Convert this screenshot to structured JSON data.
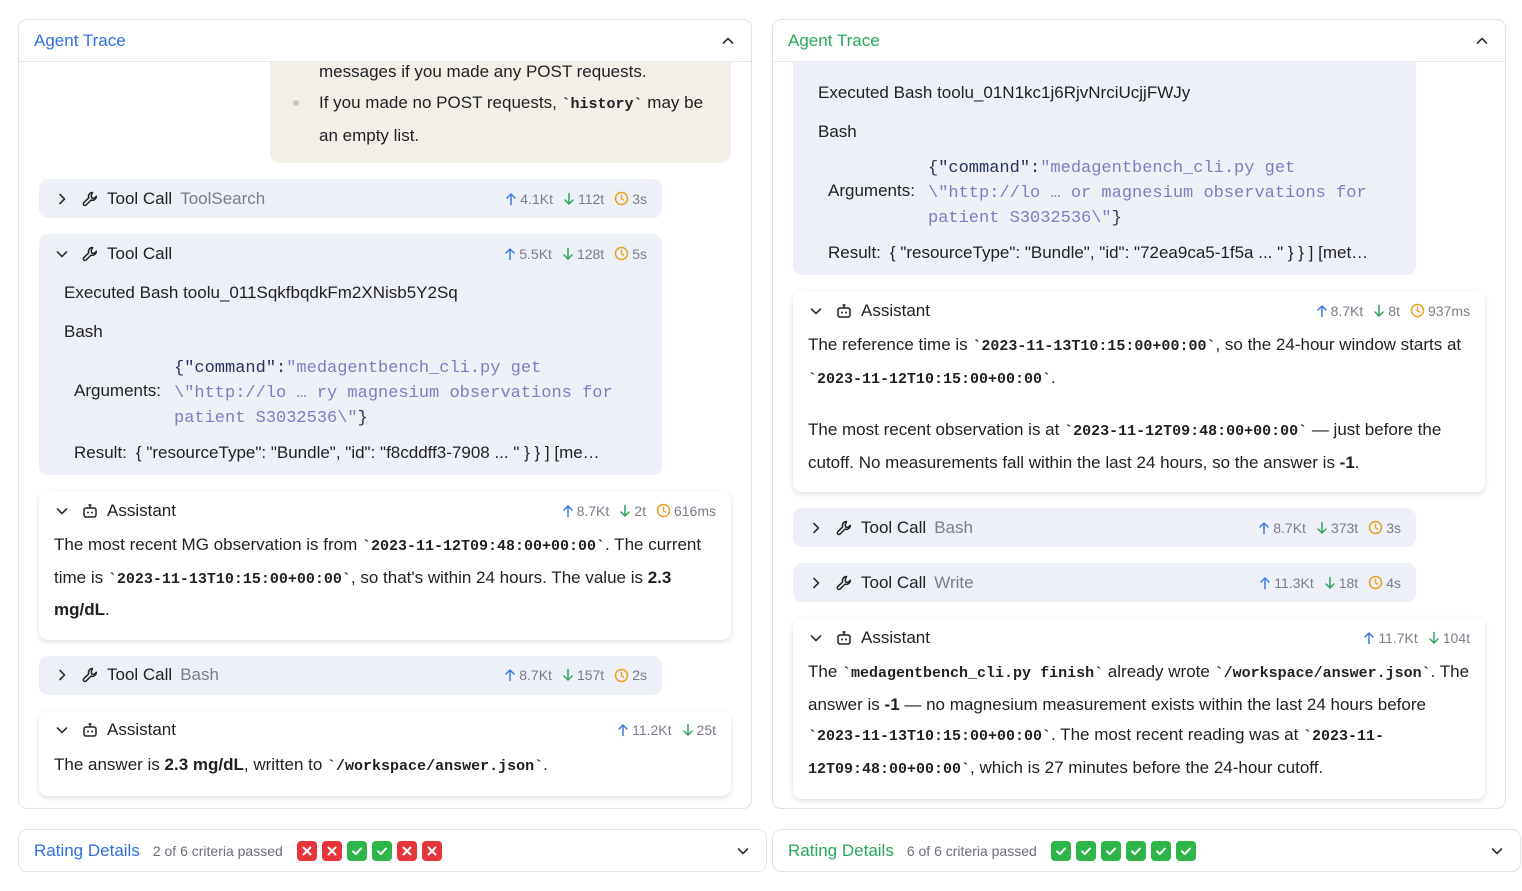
{
  "panels": [
    {
      "title": "Agent Trace",
      "accent": "#2f6fdf",
      "trace": [
        {
          "kind": "message",
          "paragraphs": [
            {
              "bullet": false,
              "segments": [
                {
                  "text": "messages if you made any POST requests."
                }
              ]
            },
            {
              "bullet": true,
              "segments": [
                {
                  "text": "If you made no POST requests, "
                },
                {
                  "text": "`history`",
                  "style": "code"
                },
                {
                  "text": " may be an empty list."
                }
              ]
            }
          ]
        },
        {
          "kind": "tool",
          "expanded": false,
          "label": "Tool Call",
          "name": "ToolSearch",
          "tokens_in": "4.1Kt",
          "tokens_out": "112t",
          "time": "3s"
        },
        {
          "kind": "tool",
          "expanded": true,
          "label": "Tool Call",
          "tokens_in": "5.5Kt",
          "tokens_out": "128t",
          "time": "5s",
          "executed": "Executed Bash toolu_011SqkfbqdkFm2XNisb5Y2Sq",
          "tool": "Bash",
          "arguments_label": "Arguments:",
          "arguments": [
            {
              "text": "{\"command\":",
              "style": "key"
            },
            {
              "text": "\"medagentbench_cli.py get \\\"http://lo … ry magnesium observations for patient S3032536\\\"",
              "style": "str"
            },
            {
              "text": "}",
              "style": "key"
            }
          ],
          "result_label": "Result:",
          "result": "{ \"resourceType\": \"Bundle\", \"id\": \"f8cddff3-7908 ... \" } } ] [me…"
        },
        {
          "kind": "assistant",
          "label": "Assistant",
          "tokens_in": "8.7Kt",
          "tokens_out": "2t",
          "time": "616ms",
          "paragraphs": [
            [
              {
                "text": "The most recent MG observation is from "
              },
              {
                "text": "`2023-11-12T09:48:00+00:00`",
                "style": "code"
              },
              {
                "text": ". The current time is "
              },
              {
                "text": "`2023-11-13T10:15:00+00:00`",
                "style": "code"
              },
              {
                "text": ", so that's within 24 hours. The value is "
              },
              {
                "text": "2.3 mg/dL",
                "style": "bold"
              },
              {
                "text": "."
              }
            ]
          ]
        },
        {
          "kind": "tool",
          "expanded": false,
          "label": "Tool Call",
          "name": "Bash",
          "tokens_in": "8.7Kt",
          "tokens_out": "157t",
          "time": "2s"
        },
        {
          "kind": "assistant",
          "label": "Assistant",
          "tokens_in": "11.2Kt",
          "tokens_out": "25t",
          "paragraphs": [
            [
              {
                "text": "The answer is "
              },
              {
                "text": "2.3 mg/dL",
                "style": "bold"
              },
              {
                "text": ", written to "
              },
              {
                "text": "`/workspace/answer.json`",
                "style": "code"
              },
              {
                "text": "."
              }
            ]
          ]
        }
      ],
      "rating": {
        "title": "Rating Details",
        "summary": "2 of 6 criteria passed",
        "criteria": [
          false,
          false,
          true,
          true,
          false,
          false
        ]
      }
    },
    {
      "title": "Agent Trace",
      "accent": "#27a85a",
      "trace": [
        {
          "kind": "tool-body",
          "executed": "Executed Bash toolu_01N1kc1j6RjvNrciUcjjFWJy",
          "tool": "Bash",
          "arguments_label": "Arguments:",
          "arguments": [
            {
              "text": "{\"command\":",
              "style": "key"
            },
            {
              "text": "\"medagentbench_cli.py get \\\"http://lo … or magnesium observations for patient S3032536\\\"",
              "style": "str"
            },
            {
              "text": "}",
              "style": "key"
            }
          ],
          "result_label": "Result:",
          "result": "{ \"resourceType\": \"Bundle\", \"id\": \"72ea9ca5-1f5a ... \" } } ] [met…"
        },
        {
          "kind": "assistant",
          "label": "Assistant",
          "tokens_in": "8.7Kt",
          "tokens_out": "8t",
          "time": "937ms",
          "paragraphs": [
            [
              {
                "text": "The reference time is "
              },
              {
                "text": "`2023-11-13T10:15:00+00:00`",
                "style": "code"
              },
              {
                "text": ", so the 24-hour window starts at "
              },
              {
                "text": "`2023-11-12T10:15:00+00:00`",
                "style": "code"
              },
              {
                "text": "."
              }
            ],
            [
              {
                "text": "The most recent observation is at "
              },
              {
                "text": "`2023-11-12T09:48:00+00:00`",
                "style": "code"
              },
              {
                "text": " — just before the cutoff. No measurements fall within the last 24 hours, so the answer is "
              },
              {
                "text": "-1",
                "style": "bold"
              },
              {
                "text": "."
              }
            ]
          ]
        },
        {
          "kind": "tool",
          "expanded": false,
          "label": "Tool Call",
          "name": "Bash",
          "tokens_in": "8.7Kt",
          "tokens_out": "373t",
          "time": "3s"
        },
        {
          "kind": "tool",
          "expanded": false,
          "label": "Tool Call",
          "name": "Write",
          "tokens_in": "11.3Kt",
          "tokens_out": "18t",
          "time": "4s"
        },
        {
          "kind": "assistant",
          "label": "Assistant",
          "tokens_in": "11.7Kt",
          "tokens_out": "104t",
          "paragraphs": [
            [
              {
                "text": "The "
              },
              {
                "text": "`medagentbench_cli.py finish`",
                "style": "code"
              },
              {
                "text": " already wrote "
              },
              {
                "text": "`/workspace/answer.json`",
                "style": "code"
              },
              {
                "text": ". The answer is "
              },
              {
                "text": "-1",
                "style": "bold"
              },
              {
                "text": " — no magnesium measurement exists within the last 24 hours before "
              },
              {
                "text": "`2023-11-13T10:15:00+00:00`",
                "style": "code"
              },
              {
                "text": ". The most recent reading was at "
              },
              {
                "text": "`2023-11-12T09:48:00+00:00`",
                "style": "code"
              },
              {
                "text": ", which is 27 minutes before the 24-hour cutoff."
              }
            ]
          ]
        }
      ],
      "rating": {
        "title": "Rating Details",
        "summary": "6 of 6 criteria passed",
        "criteria": [
          true,
          true,
          true,
          true,
          true,
          true
        ]
      }
    }
  ]
}
